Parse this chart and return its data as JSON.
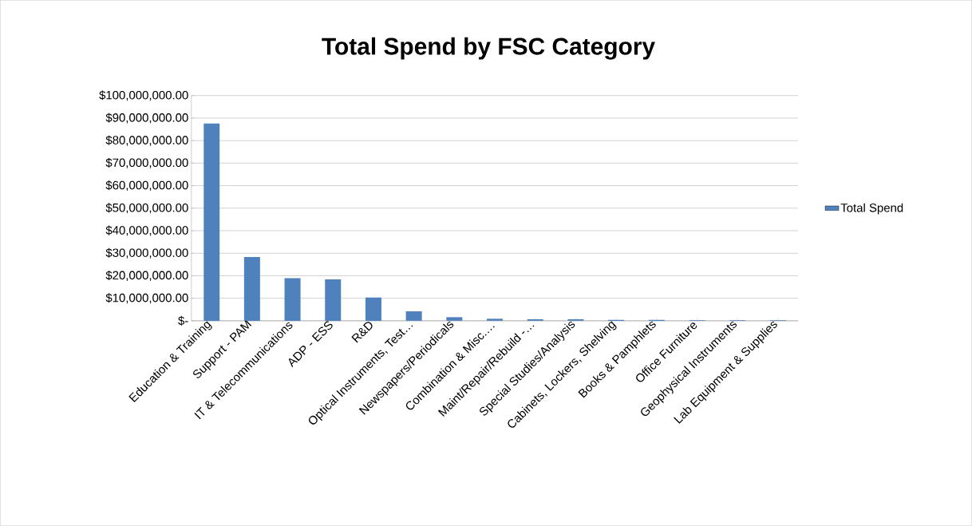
{
  "chart_data": {
    "type": "bar",
    "title": "Total Spend by FSC Category",
    "categories": [
      "Education & Training",
      "Support - PAM",
      "IT & Telecommunications",
      "ADP - ESS",
      "R&D",
      "Optical Instruments, Test…",
      "Newspapers/Periodicals",
      "Combination & Misc.…",
      "Maint/Repair/Rebuild -…",
      "Special Studies/Analysis",
      "Cabinets, Lockers, Shelving",
      "Books & Pamphlets",
      "Office Furniture",
      "Geophysical Instruments",
      "Lab Equipment & Supplies"
    ],
    "series": [
      {
        "name": "Total Spend",
        "color": "#4f81bd",
        "values": [
          87600000,
          28300000,
          18900000,
          18400000,
          10300000,
          4200000,
          1600000,
          900000,
          700000,
          700000,
          400000,
          400000,
          200000,
          200000,
          200000
        ]
      }
    ],
    "ylim": [
      0,
      100000000
    ],
    "yticks": [
      {
        "value": 0,
        "label": "$-"
      },
      {
        "value": 10000000,
        "label": "$10,000,000.00"
      },
      {
        "value": 20000000,
        "label": "$20,000,000.00"
      },
      {
        "value": 30000000,
        "label": "$30,000,000.00"
      },
      {
        "value": 40000000,
        "label": "$40,000,000.00"
      },
      {
        "value": 50000000,
        "label": "$50,000,000.00"
      },
      {
        "value": 60000000,
        "label": "$60,000,000.00"
      },
      {
        "value": 70000000,
        "label": "$70,000,000.00"
      },
      {
        "value": 80000000,
        "label": "$80,000,000.00"
      },
      {
        "value": 90000000,
        "label": "$90,000,000.00"
      },
      {
        "value": 100000000,
        "label": "$100,000,000.00"
      }
    ],
    "grid": "y",
    "legend": "right"
  }
}
